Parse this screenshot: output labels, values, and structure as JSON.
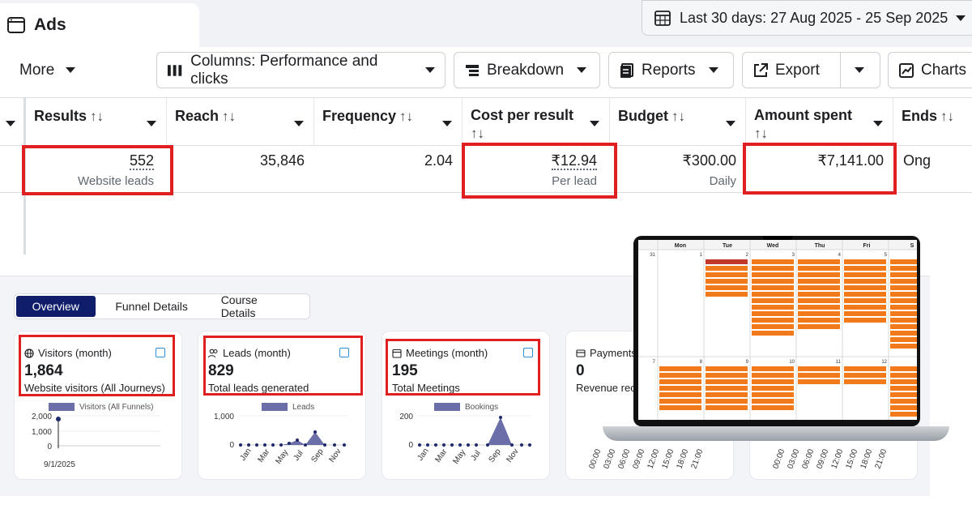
{
  "tab_title": "Ads",
  "date_range": "Last 30 days: 27 Aug 2025 - 25 Sep 2025",
  "toolbar": {
    "more": "More",
    "columns": "Columns: Performance and clicks",
    "breakdown": "Breakdown",
    "reports": "Reports",
    "export": "Export",
    "charts": "Charts"
  },
  "table": {
    "headers": [
      {
        "label": "Results",
        "sort": "↑↓"
      },
      {
        "label": "Reach",
        "sort": "↑↓"
      },
      {
        "label": "Frequency",
        "sort": "↑↓"
      },
      {
        "label": "Cost per result",
        "sort": "↑↓"
      },
      {
        "label": "Budget",
        "sort": "↑↓"
      },
      {
        "label": "Amount spent",
        "sort": "↑↓"
      },
      {
        "label": "Ends",
        "sort": "↑↓"
      }
    ],
    "row": {
      "results": "552",
      "results_sub": "Website leads",
      "reach": "35,846",
      "frequency": "2.04",
      "cost_per_result": "₹12.94",
      "cost_sub": "Per lead",
      "budget": "₹300.00",
      "budget_sub": "Daily",
      "amount_spent": "₹7,141.00",
      "ends": "Ong"
    }
  },
  "dashboard": {
    "tabs": [
      "Overview",
      "Funnel Details",
      "Course Details"
    ],
    "cards": [
      {
        "title": "Visitors (month)",
        "value": "1,864",
        "subtitle": "Website visitors (All Journeys)",
        "legend": "Visitors (All Funnels)",
        "y_ticks": [
          "2,000",
          "1,000",
          "0"
        ],
        "x_labels": [
          "9/1/2025"
        ]
      },
      {
        "title": "Leads (month)",
        "value": "829",
        "subtitle": "Total leads generated",
        "legend": "Leads",
        "y_ticks": [
          "1,000",
          "0"
        ],
        "x_labels": [
          "Jan",
          "Mar",
          "May",
          "Jul",
          "Sep",
          "Nov"
        ]
      },
      {
        "title": "Meetings (month)",
        "value": "195",
        "subtitle": "Total Meetings",
        "legend": "Bookings",
        "y_ticks": [
          "200",
          "0"
        ],
        "x_labels": [
          "Jan",
          "Mar",
          "May",
          "Jul",
          "Sep",
          "Nov"
        ]
      },
      {
        "title": "Payments",
        "value": "0",
        "subtitle": "Revenue rec",
        "x_labels": [
          "00:00",
          "03:00",
          "06:00",
          "09:00",
          "12:00",
          "15:00",
          "18:00",
          "21:00"
        ]
      },
      {
        "x_labels": [
          "00:00",
          "03:00",
          "06:00",
          "09:00",
          "12:00",
          "15:00",
          "18:00",
          "21:00"
        ]
      }
    ]
  },
  "calendar": {
    "days": [
      "Mon",
      "Tue",
      "Wed",
      "Thu",
      "Fri",
      "S"
    ],
    "week1_dates": [
      "31",
      "1",
      "2",
      "3",
      "4",
      "5"
    ],
    "week2_dates": [
      "7",
      "8",
      "9",
      "10",
      "11",
      "12"
    ]
  },
  "colors": {
    "highlight_red": "#e02020",
    "tab_active": "#0f1d6b",
    "chart_fill": "#6b6ea8",
    "event_orange": "#f27a1a"
  }
}
